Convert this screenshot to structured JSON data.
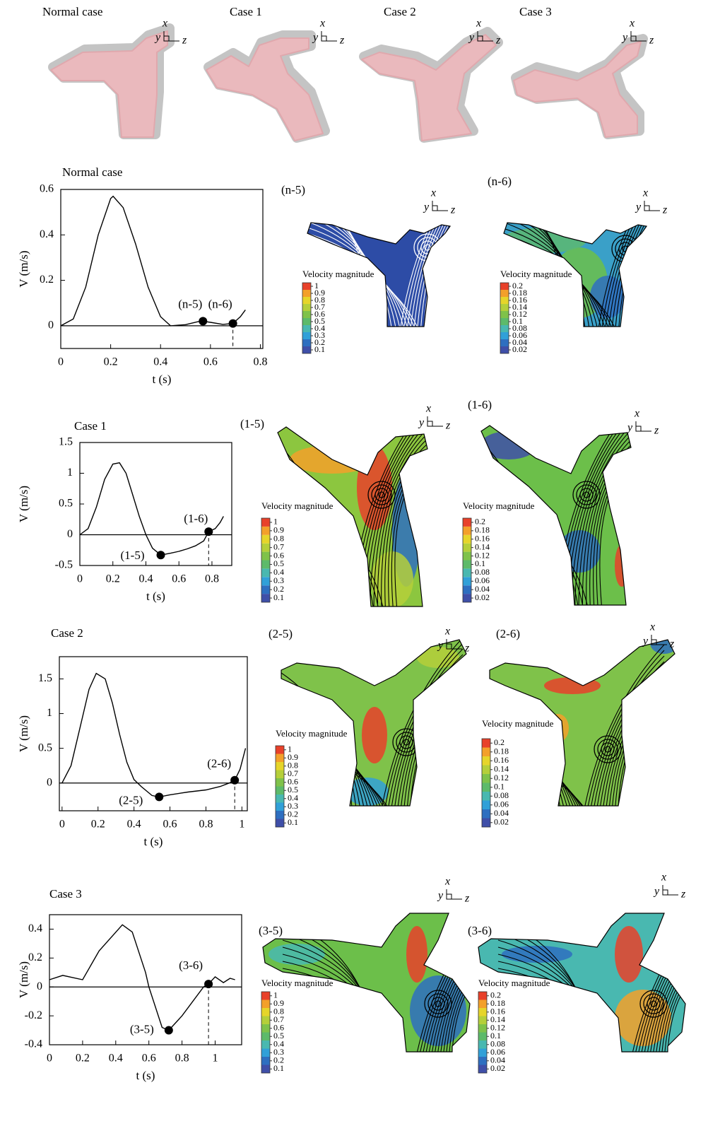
{
  "geometry": {
    "cases": [
      "Normal case",
      "Case 1",
      "Case 2",
      "Case 3"
    ]
  },
  "axis_triad": [
    "x",
    "y",
    "z"
  ],
  "chart_data": [
    {
      "type": "line",
      "title": "Normal case",
      "x_label": "t (s)",
      "y_label": "V (m/s)",
      "color": "#000000",
      "x": [
        0,
        0.05,
        0.1,
        0.15,
        0.2,
        0.21,
        0.25,
        0.3,
        0.35,
        0.4,
        0.44,
        0.5,
        0.55,
        0.57,
        0.6,
        0.65,
        0.69,
        0.72,
        0.74
      ],
      "values": [
        0,
        0.03,
        0.17,
        0.4,
        0.56,
        0.57,
        0.52,
        0.36,
        0.17,
        0.04,
        0,
        0.005,
        0.018,
        0.02,
        0.015,
        0.006,
        0.01,
        0.04,
        0.07
      ],
      "xlim": [
        0,
        0.81
      ],
      "ylim": [
        -0.1,
        0.6
      ],
      "xticks": [
        0,
        0.2,
        0.4,
        0.6,
        0.8
      ],
      "yticks": [
        0,
        0.2,
        0.4,
        0.6
      ],
      "points": [
        {
          "label": "(n-5)",
          "x": 0.57,
          "y": 0.02
        },
        {
          "label": "(n-6)",
          "x": 0.69,
          "y": 0.01,
          "dashed": true
        }
      ]
    },
    {
      "type": "line",
      "title": "Case 1",
      "x_label": "t (s)",
      "y_label": "V (m/s)",
      "color": "#000000",
      "x": [
        0,
        0.05,
        0.1,
        0.15,
        0.2,
        0.24,
        0.28,
        0.32,
        0.36,
        0.4,
        0.44,
        0.49,
        0.55,
        0.6,
        0.65,
        0.7,
        0.75,
        0.78,
        0.82,
        0.85,
        0.87
      ],
      "values": [
        0,
        0.1,
        0.45,
        0.9,
        1.15,
        1.17,
        1.0,
        0.65,
        0.3,
        0.0,
        -0.22,
        -0.33,
        -0.3,
        -0.27,
        -0.23,
        -0.18,
        -0.1,
        0.05,
        0.1,
        0.2,
        0.3
      ],
      "xlim": [
        0,
        0.92
      ],
      "ylim": [
        -0.5,
        1.5
      ],
      "xticks": [
        0,
        0.2,
        0.4,
        0.6,
        0.8
      ],
      "yticks": [
        -0.5,
        0,
        0.5,
        1,
        1.5
      ],
      "points": [
        {
          "label": "(1-5)",
          "x": 0.49,
          "y": -0.33
        },
        {
          "label": "(1-6)",
          "x": 0.78,
          "y": 0.05,
          "dashed": true
        }
      ]
    },
    {
      "type": "line",
      "title": "Case 2",
      "x_label": "t (s)",
      "y_label": "V (m/s)",
      "color": "#000000",
      "x": [
        0,
        0.05,
        0.1,
        0.15,
        0.19,
        0.24,
        0.28,
        0.32,
        0.36,
        0.4,
        0.44,
        0.5,
        0.54,
        0.6,
        0.7,
        0.8,
        0.88,
        0.93,
        0.96,
        0.99,
        1.02
      ],
      "values": [
        0,
        0.25,
        0.8,
        1.35,
        1.58,
        1.5,
        1.15,
        0.7,
        0.3,
        0.05,
        -0.05,
        -0.18,
        -0.2,
        -0.17,
        -0.13,
        -0.1,
        -0.05,
        0.0,
        0.04,
        0.2,
        0.5
      ],
      "xlim": [
        -0.015,
        1.03
      ],
      "ylim": [
        -0.4,
        1.82
      ],
      "xticks": [
        0,
        0.2,
        0.4,
        0.6,
        0.8,
        1
      ],
      "yticks": [
        0,
        0.5,
        1,
        1.5
      ],
      "points": [
        {
          "label": "(2-5)",
          "x": 0.54,
          "y": -0.2
        },
        {
          "label": "(2-6)",
          "x": 0.96,
          "y": 0.04,
          "dashed": true
        }
      ]
    },
    {
      "type": "line",
      "title": "Case 3",
      "x_label": "t (s)",
      "y_label": "V (m/s)",
      "color": "#000000",
      "x": [
        0,
        0.08,
        0.2,
        0.3,
        0.44,
        0.5,
        0.58,
        0.6,
        0.68,
        0.72,
        0.8,
        0.93,
        0.96,
        1.0,
        1.05,
        1.09,
        1.12
      ],
      "values": [
        0.05,
        0.08,
        0.05,
        0.25,
        0.43,
        0.38,
        0.1,
        0,
        -0.28,
        -0.3,
        -0.2,
        0,
        0.02,
        0.07,
        0.03,
        0.06,
        0.05
      ],
      "xlim": [
        0,
        1.16
      ],
      "ylim": [
        -0.4,
        0.5
      ],
      "xticks": [
        0,
        0.2,
        0.4,
        0.6,
        0.8,
        1
      ],
      "yticks": [
        -0.4,
        -0.2,
        0,
        0.2,
        0.4
      ],
      "points": [
        {
          "label": "(3-5)",
          "x": 0.72,
          "y": -0.3
        },
        {
          "label": "(3-6)",
          "x": 0.96,
          "y": 0.02,
          "dashed": true
        }
      ]
    }
  ],
  "flow_panels": [
    {
      "label": "(n-5)",
      "colorbar_title": "Velocity magnitude",
      "colorbar_ticks": [
        1,
        0.9,
        0.8,
        0.7,
        0.6,
        0.5,
        0.4,
        0.3,
        0.2,
        0.1
      ]
    },
    {
      "label": "(n-6)",
      "colorbar_title": "Velocity magnitude",
      "colorbar_ticks": [
        0.2,
        0.18,
        0.16,
        0.14,
        0.12,
        0.1,
        0.08,
        0.06,
        0.04,
        0.02
      ]
    },
    {
      "label": "(1-5)",
      "colorbar_title": "Velocity magnitude",
      "colorbar_ticks": [
        1,
        0.9,
        0.8,
        0.7,
        0.6,
        0.5,
        0.4,
        0.3,
        0.2,
        0.1
      ]
    },
    {
      "label": "(1-6)",
      "colorbar_title": "Velocity magnitude",
      "colorbar_ticks": [
        0.2,
        0.18,
        0.16,
        0.14,
        0.12,
        0.1,
        0.08,
        0.06,
        0.04,
        0.02
      ]
    },
    {
      "label": "(2-5)",
      "colorbar_title": "Velocity magnitude",
      "colorbar_ticks": [
        1,
        0.9,
        0.8,
        0.7,
        0.6,
        0.5,
        0.4,
        0.3,
        0.2,
        0.1
      ]
    },
    {
      "label": "(2-6)",
      "colorbar_title": "Velocity magnitude",
      "colorbar_ticks": [
        0.2,
        0.18,
        0.16,
        0.14,
        0.12,
        0.1,
        0.08,
        0.06,
        0.04,
        0.02
      ]
    },
    {
      "label": "(3-5)",
      "colorbar_title": "Velocity magnitude",
      "colorbar_ticks": [
        1,
        0.9,
        0.8,
        0.7,
        0.6,
        0.5,
        0.4,
        0.3,
        0.2,
        0.1
      ]
    },
    {
      "label": "(3-6)",
      "colorbar_title": "Velocity magnitude",
      "colorbar_ticks": [
        0.2,
        0.18,
        0.16,
        0.14,
        0.12,
        0.1,
        0.08,
        0.06,
        0.04,
        0.02
      ]
    }
  ]
}
